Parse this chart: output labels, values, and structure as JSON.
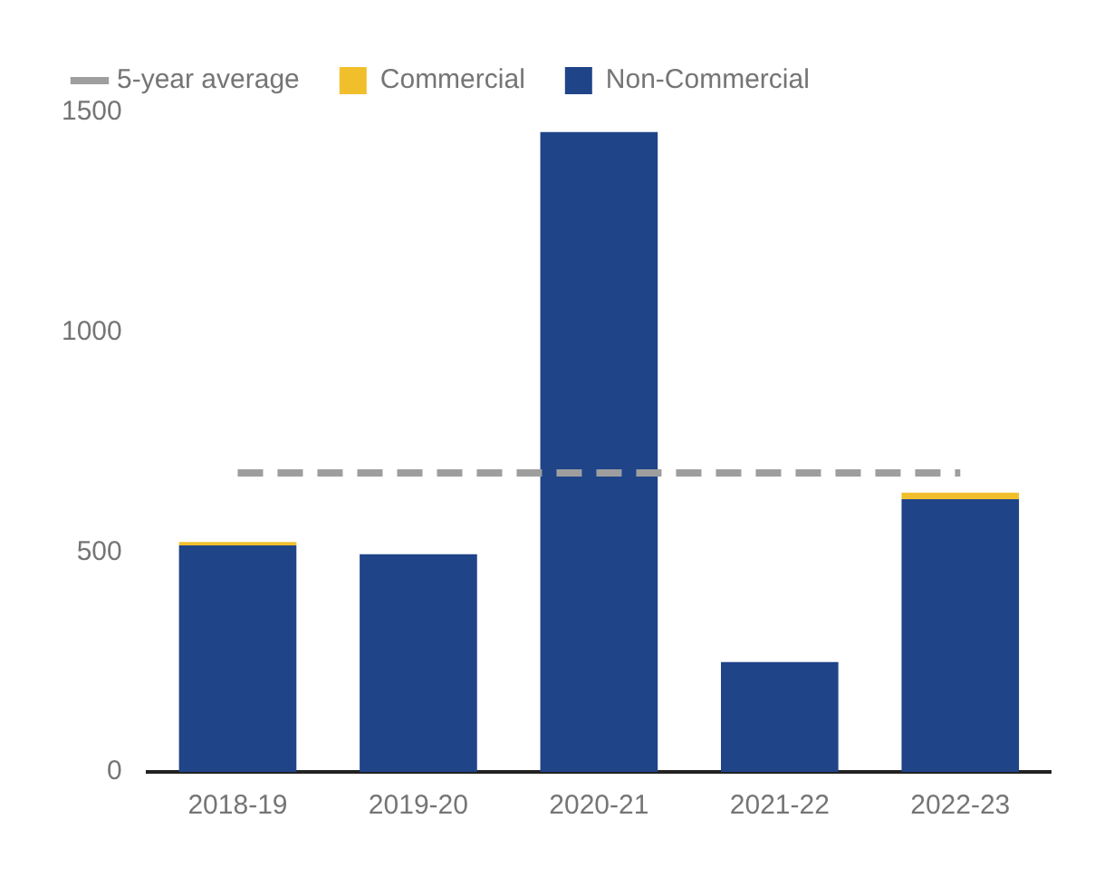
{
  "chart_data": {
    "type": "bar",
    "stacked": true,
    "categories": [
      "2018-19",
      "2019-20",
      "2020-21",
      "2021-22",
      "2022-23"
    ],
    "series": [
      {
        "name": "Non-Commercial",
        "color": "#1f4488",
        "values": [
          515,
          495,
          1455,
          250,
          620
        ]
      },
      {
        "name": "Commercial",
        "color": "#f2bf2c",
        "values": [
          8,
          0,
          0,
          0,
          15
        ]
      },
      {
        "name": "5-year average",
        "type": "line",
        "line_style": "dashed",
        "color": "#9e9e9e",
        "values": [
          680,
          680,
          680,
          680,
          680
        ]
      }
    ],
    "ylim": [
      0,
      1500
    ],
    "yticks": [
      0,
      500,
      1000,
      1500
    ],
    "grid": false,
    "legend": "top left"
  }
}
